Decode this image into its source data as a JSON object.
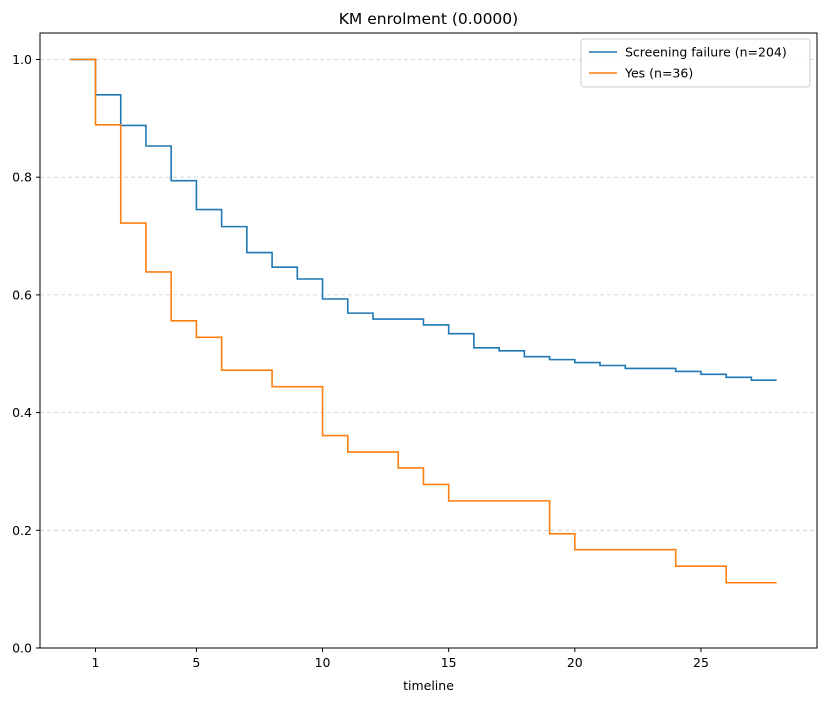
{
  "chart_data": {
    "type": "line",
    "step": true,
    "title": "KM enrolment (0.0000)",
    "xlabel": "timeline",
    "ylabel": "",
    "xlim": [
      -1.2,
      29.6
    ],
    "ylim": [
      0,
      1.045
    ],
    "x_ticks": [
      1,
      5,
      10,
      15,
      20,
      25
    ],
    "y_ticks": [
      0.0,
      0.2,
      0.4,
      0.6,
      0.8,
      1.0
    ],
    "y_tick_labels": [
      "0.0",
      "0.2",
      "0.4",
      "0.6",
      "0.8",
      "1.0"
    ],
    "grid": "y dashed",
    "legend_position": "top-right",
    "series": [
      {
        "name": "Screening failure (n=204)",
        "color": "#1f77b4",
        "x": [
          0,
          1,
          2,
          3,
          4,
          5,
          6,
          7,
          8,
          9,
          10,
          11,
          12,
          13,
          14,
          15,
          16,
          17,
          18,
          19,
          20,
          21,
          22,
          23,
          24,
          25,
          26,
          27,
          28
        ],
        "y": [
          1.0,
          0.94,
          0.888,
          0.853,
          0.794,
          0.745,
          0.716,
          0.672,
          0.647,
          0.627,
          0.593,
          0.569,
          0.559,
          0.559,
          0.549,
          0.534,
          0.51,
          0.505,
          0.495,
          0.49,
          0.485,
          0.48,
          0.475,
          0.475,
          0.47,
          0.465,
          0.46,
          0.455,
          0.455
        ]
      },
      {
        "name": "Yes (n=36)",
        "color": "#ff7f0e",
        "x": [
          0,
          1,
          2,
          3,
          4,
          5,
          6,
          7,
          8,
          9,
          10,
          11,
          12,
          13,
          14,
          15,
          16,
          17,
          18,
          19,
          20,
          21,
          22,
          23,
          24,
          25,
          26,
          27,
          28
        ],
        "y": [
          1.0,
          0.889,
          0.722,
          0.639,
          0.556,
          0.528,
          0.472,
          0.472,
          0.444,
          0.444,
          0.361,
          0.333,
          0.333,
          0.306,
          0.278,
          0.25,
          0.25,
          0.25,
          0.25,
          0.194,
          0.167,
          0.167,
          0.167,
          0.167,
          0.139,
          0.139,
          0.111,
          0.111,
          0.111
        ]
      }
    ]
  }
}
